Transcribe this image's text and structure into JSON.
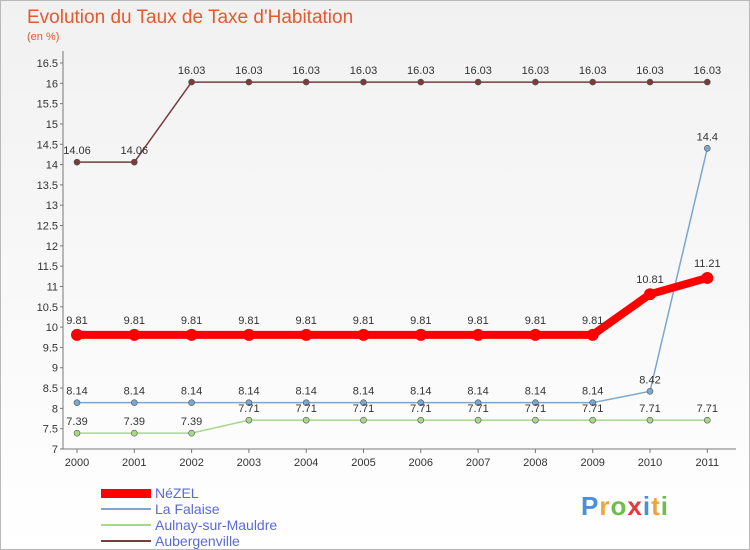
{
  "chart_data": {
    "type": "line",
    "title": "Evolution du Taux de Taxe d'Habitation",
    "subtitle": "(en %)",
    "xlabel": "",
    "ylabel": "(en %)",
    "x": [
      "2000",
      "2001",
      "2002",
      "2003",
      "2004",
      "2005",
      "2006",
      "2007",
      "2008",
      "2009",
      "2010",
      "2011"
    ],
    "ylim": [
      7,
      16.5
    ],
    "yticks": [
      "7",
      "7.5",
      "8",
      "8.5",
      "9",
      "9.5",
      "10",
      "10.5",
      "11",
      "11.5",
      "12",
      "12.5",
      "13",
      "13.5",
      "14",
      "14.5",
      "15",
      "15.5",
      "16",
      "16.5"
    ],
    "grid": false,
    "legend_position": "bottom-left",
    "series": [
      {
        "name": "NéZEL",
        "color": "#ff0000",
        "emphasis": "thick",
        "values": [
          9.81,
          9.81,
          9.81,
          9.81,
          9.81,
          9.81,
          9.81,
          9.81,
          9.81,
          9.81,
          10.81,
          11.21
        ],
        "labels": [
          "9.81",
          "9.81",
          "9.81",
          "9.81",
          "9.81",
          "9.81",
          "9.81",
          "9.81",
          "9.81",
          "9.81",
          "10.81",
          "11.21"
        ]
      },
      {
        "name": "La Falaise",
        "color": "#7ba7cf",
        "values": [
          8.14,
          8.14,
          8.14,
          8.14,
          8.14,
          8.14,
          8.14,
          8.14,
          8.14,
          8.14,
          8.42,
          14.4
        ],
        "labels": [
          "8.14",
          "8.14",
          "8.14",
          "8.14",
          "8.14",
          "8.14",
          "8.14",
          "8.14",
          "8.14",
          "8.14",
          "8.42",
          "14.4"
        ]
      },
      {
        "name": "Aulnay-sur-Mauldre",
        "color": "#a8d98a",
        "values": [
          7.39,
          7.39,
          7.39,
          7.71,
          7.71,
          7.71,
          7.71,
          7.71,
          7.71,
          7.71,
          7.71,
          7.71
        ],
        "labels": [
          "7.39",
          "7.39",
          "7.39",
          "7.71",
          "7.71",
          "7.71",
          "7.71",
          "7.71",
          "7.71",
          "7.71",
          "7.71",
          "7.71"
        ]
      },
      {
        "name": "Aubergenville",
        "color": "#7a3b3b",
        "values": [
          14.06,
          14.06,
          16.03,
          16.03,
          16.03,
          16.03,
          16.03,
          16.03,
          16.03,
          16.03,
          16.03,
          16.03
        ],
        "labels": [
          "14.06",
          "14.06",
          "16.03",
          "16.03",
          "16.03",
          "16.03",
          "16.03",
          "16.03",
          "16.03",
          "16.03",
          "16.03",
          "16.03"
        ]
      }
    ]
  },
  "logo": {
    "letters": [
      "P",
      "r",
      "o",
      "x",
      "i",
      "t",
      "i"
    ]
  }
}
